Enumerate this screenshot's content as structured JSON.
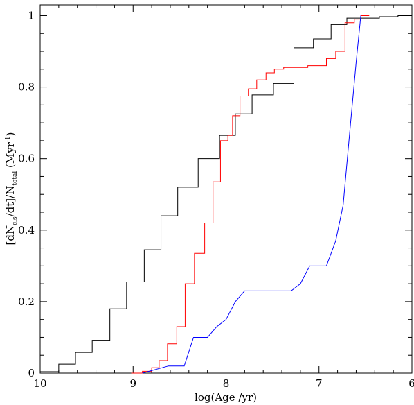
{
  "chart_data": {
    "type": "line",
    "xlabel": "log(Age /yr)",
    "ylabel": {
      "prefix": "[dN",
      "sub1": "cls",
      "middle": "/dt]/N",
      "sub2": "total",
      "suffix": " (Myr",
      "sup": "-1",
      "end": ")"
    },
    "xlim": [
      10,
      6
    ],
    "ylim": [
      0,
      1.03
    ],
    "x_ticks": [
      10,
      9,
      8,
      7,
      6
    ],
    "y_ticks": [
      0,
      0.2,
      0.4,
      0.6,
      0.8,
      1
    ],
    "x_tick_labels": [
      "10",
      "9",
      "8",
      "7",
      "6"
    ],
    "y_tick_labels": [
      "0",
      "0.2",
      "0.4",
      "0.6",
      "0.8",
      "1"
    ],
    "grid": false,
    "series": [
      {
        "color": "#000000",
        "style": "step",
        "points": [
          [
            10.0,
            0.004
          ],
          [
            9.8,
            0.004
          ],
          [
            9.8,
            0.025
          ],
          [
            9.62,
            0.025
          ],
          [
            9.62,
            0.058
          ],
          [
            9.44,
            0.058
          ],
          [
            9.44,
            0.092
          ],
          [
            9.25,
            0.092
          ],
          [
            9.25,
            0.18
          ],
          [
            9.07,
            0.18
          ],
          [
            9.07,
            0.255
          ],
          [
            8.88,
            0.255
          ],
          [
            8.88,
            0.345
          ],
          [
            8.7,
            0.345
          ],
          [
            8.7,
            0.44
          ],
          [
            8.52,
            0.44
          ],
          [
            8.52,
            0.52
          ],
          [
            8.3,
            0.52
          ],
          [
            8.3,
            0.6
          ],
          [
            8.07,
            0.6
          ],
          [
            8.07,
            0.665
          ],
          [
            7.9,
            0.665
          ],
          [
            7.9,
            0.725
          ],
          [
            7.72,
            0.725
          ],
          [
            7.72,
            0.778
          ],
          [
            7.49,
            0.778
          ],
          [
            7.49,
            0.81
          ],
          [
            7.27,
            0.81
          ],
          [
            7.27,
            0.91
          ],
          [
            7.06,
            0.91
          ],
          [
            7.06,
            0.935
          ],
          [
            6.87,
            0.935
          ],
          [
            6.87,
            0.975
          ],
          [
            6.7,
            0.975
          ],
          [
            6.7,
            0.993
          ],
          [
            6.35,
            0.993
          ],
          [
            6.35,
            0.997
          ],
          [
            6.15,
            0.997
          ],
          [
            6.15,
            1.0
          ],
          [
            6.0,
            1.0
          ]
        ]
      },
      {
        "color": "#ff0000",
        "style": "step",
        "points": [
          [
            9.02,
            0.0
          ],
          [
            8.9,
            0.0
          ],
          [
            8.9,
            0.005
          ],
          [
            8.8,
            0.005
          ],
          [
            8.8,
            0.015
          ],
          [
            8.72,
            0.015
          ],
          [
            8.72,
            0.035
          ],
          [
            8.63,
            0.035
          ],
          [
            8.63,
            0.082
          ],
          [
            8.53,
            0.082
          ],
          [
            8.53,
            0.13
          ],
          [
            8.44,
            0.13
          ],
          [
            8.44,
            0.25
          ],
          [
            8.34,
            0.25
          ],
          [
            8.34,
            0.335
          ],
          [
            8.23,
            0.335
          ],
          [
            8.23,
            0.42
          ],
          [
            8.14,
            0.42
          ],
          [
            8.14,
            0.535
          ],
          [
            8.06,
            0.535
          ],
          [
            8.06,
            0.65
          ],
          [
            7.98,
            0.65
          ],
          [
            7.98,
            0.665
          ],
          [
            7.93,
            0.665
          ],
          [
            7.93,
            0.72
          ],
          [
            7.85,
            0.72
          ],
          [
            7.85,
            0.775
          ],
          [
            7.76,
            0.775
          ],
          [
            7.76,
            0.795
          ],
          [
            7.67,
            0.795
          ],
          [
            7.67,
            0.82
          ],
          [
            7.57,
            0.82
          ],
          [
            7.57,
            0.84
          ],
          [
            7.48,
            0.84
          ],
          [
            7.48,
            0.85
          ],
          [
            7.38,
            0.85
          ],
          [
            7.38,
            0.855
          ],
          [
            7.12,
            0.855
          ],
          [
            7.12,
            0.86
          ],
          [
            6.92,
            0.86
          ],
          [
            6.92,
            0.88
          ],
          [
            6.82,
            0.88
          ],
          [
            6.82,
            0.9
          ],
          [
            6.72,
            0.9
          ],
          [
            6.72,
            0.98
          ],
          [
            6.62,
            0.98
          ],
          [
            6.62,
            0.99
          ],
          [
            6.55,
            0.99
          ],
          [
            6.55,
            1.0
          ],
          [
            6.46,
            1.0
          ]
        ]
      },
      {
        "color": "#0000ff",
        "style": "line",
        "points": [
          [
            8.9,
            0.0
          ],
          [
            8.62,
            0.02
          ],
          [
            8.45,
            0.02
          ],
          [
            8.35,
            0.1
          ],
          [
            8.2,
            0.1
          ],
          [
            8.1,
            0.13
          ],
          [
            8.0,
            0.15
          ],
          [
            7.9,
            0.2
          ],
          [
            7.8,
            0.23
          ],
          [
            7.3,
            0.23
          ],
          [
            7.2,
            0.25
          ],
          [
            7.1,
            0.3
          ],
          [
            6.92,
            0.3
          ],
          [
            6.82,
            0.37
          ],
          [
            6.74,
            0.47
          ],
          [
            6.66,
            0.7
          ],
          [
            6.6,
            0.87
          ],
          [
            6.55,
            1.0
          ]
        ]
      }
    ]
  }
}
